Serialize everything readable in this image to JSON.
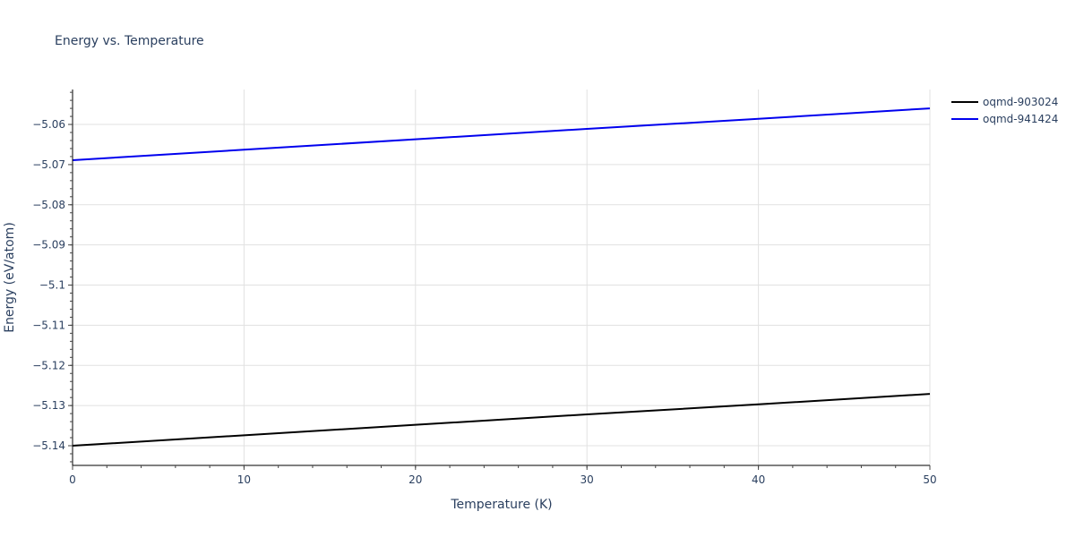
{
  "chart_data": {
    "type": "line",
    "title": "Energy vs. Temperature",
    "xlabel": "Temperature (K)",
    "ylabel": "Energy (eV/atom)",
    "xlim": [
      0,
      50
    ],
    "ylim": [
      -5.1449,
      -5.0513
    ],
    "x_ticks": [
      0,
      10,
      20,
      30,
      40,
      50
    ],
    "y_ticks": [
      -5.14,
      -5.13,
      -5.12,
      -5.11,
      -5.1,
      -5.09,
      -5.08,
      -5.07,
      -5.06
    ],
    "y_tick_labels": [
      "−5.14",
      "−5.13",
      "−5.12",
      "−5.11",
      "−5.1",
      "−5.09",
      "−5.08",
      "−5.07",
      "−5.06"
    ],
    "grid": true,
    "legend_position": "top-right-outside",
    "series": [
      {
        "name": "oqmd-903024",
        "color": "#000000",
        "x": [
          0,
          10,
          20,
          30,
          40,
          50
        ],
        "values": [
          -5.14,
          -5.1374,
          -5.1348,
          -5.1322,
          -5.1297,
          -5.1271
        ]
      },
      {
        "name": "oqmd-941424",
        "color": "#0000ee",
        "x": [
          0,
          10,
          20,
          30,
          40,
          50
        ],
        "values": [
          -5.0689,
          -5.0663,
          -5.0637,
          -5.0611,
          -5.0586,
          -5.056
        ]
      }
    ]
  }
}
